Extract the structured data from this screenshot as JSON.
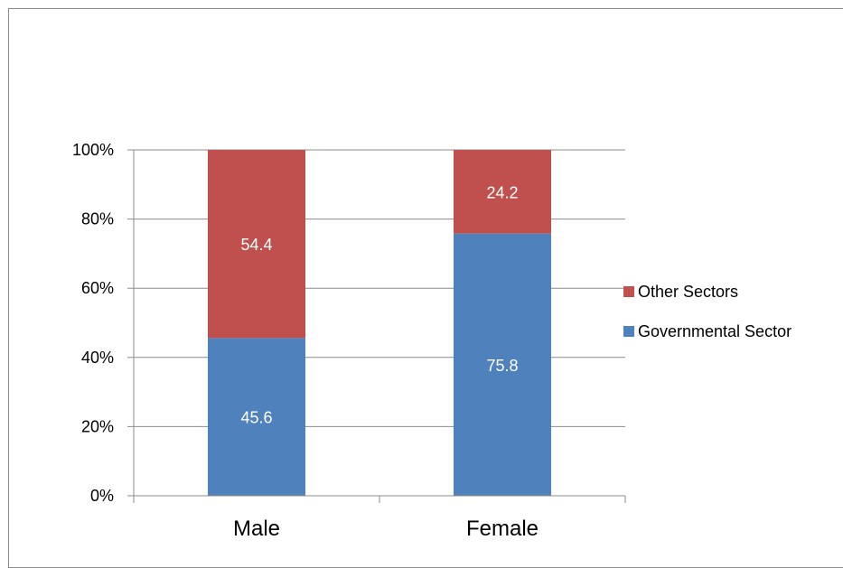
{
  "chart_data": {
    "type": "bar",
    "stacked": true,
    "percent_stacked": true,
    "categories": [
      "Male",
      "Female"
    ],
    "series": [
      {
        "name": "Governmental Sector",
        "values": [
          45.6,
          75.8
        ],
        "color": "#4f81bd"
      },
      {
        "name": "Other Sectors",
        "values": [
          54.4,
          24.2
        ],
        "color": "#c0504d"
      }
    ],
    "y_ticks": [
      "0%",
      "20%",
      "40%",
      "60%",
      "80%",
      "100%"
    ],
    "ylim": [
      0,
      100
    ],
    "grid": true,
    "legend_position": "right"
  }
}
